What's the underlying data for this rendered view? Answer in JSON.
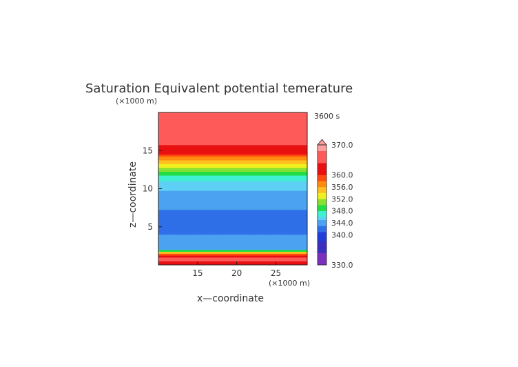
{
  "chart_data": {
    "type": "heatmap",
    "title": "Saturation Equivalent potential temerature",
    "time_label": "3600 s",
    "xlabel": "x—coordinate",
    "ylabel": "z—coordinate",
    "x_unit": "(×1000 m)",
    "y_unit": "(×1000 m)",
    "xlim": [
      10,
      29
    ],
    "ylim": [
      0,
      20
    ],
    "x_ticks": [
      15,
      20,
      25
    ],
    "y_ticks": [
      5,
      10,
      15
    ],
    "colorbar": {
      "min": 330,
      "max": 370,
      "tick_labels": [
        "370.0",
        "360.0",
        "356.0",
        "352.0",
        "348.0",
        "344.0",
        "340.0",
        "330.0"
      ],
      "tick_values": [
        370,
        360,
        356,
        352,
        348,
        344,
        340,
        330
      ],
      "colors": [
        {
          "value": 330,
          "color": "#7b2fbf"
        },
        {
          "value": 334,
          "color": "#3a2fbf"
        },
        {
          "value": 338,
          "color": "#1f3fd8"
        },
        {
          "value": 341,
          "color": "#2f6fe8"
        },
        {
          "value": 343,
          "color": "#4aa2f0"
        },
        {
          "value": 345,
          "color": "#5fd0f5"
        },
        {
          "value": 346.5,
          "color": "#3ff0d0"
        },
        {
          "value": 348,
          "color": "#22dd44"
        },
        {
          "value": 350,
          "color": "#88e030"
        },
        {
          "value": 352,
          "color": "#f0f020"
        },
        {
          "value": 354,
          "color": "#ffc020"
        },
        {
          "value": 356,
          "color": "#ff8a10"
        },
        {
          "value": 358,
          "color": "#ff4a10"
        },
        {
          "value": 360,
          "color": "#e81010"
        },
        {
          "value": 364,
          "color": "#ff5a5a"
        },
        {
          "value": 368,
          "color": "#ffa0a0"
        }
      ]
    },
    "profile": [
      {
        "z": 0.0,
        "value": 362
      },
      {
        "z": 0.4,
        "value": 364
      },
      {
        "z": 1.0,
        "value": 366
      },
      {
        "z": 1.6,
        "value": 356
      },
      {
        "z": 2.0,
        "value": 345
      },
      {
        "z": 2.6,
        "value": 343
      },
      {
        "z": 3.2,
        "value": 344
      },
      {
        "z": 4.0,
        "value": 343
      },
      {
        "z": 5.0,
        "value": 342
      },
      {
        "z": 6.5,
        "value": 342
      },
      {
        "z": 7.5,
        "value": 343.5
      },
      {
        "z": 9.0,
        "value": 344.5
      },
      {
        "z": 10.5,
        "value": 345.5
      },
      {
        "z": 11.5,
        "value": 347.5
      },
      {
        "z": 12.0,
        "value": 349
      },
      {
        "z": 12.8,
        "value": 352
      },
      {
        "z": 13.6,
        "value": 355
      },
      {
        "z": 14.2,
        "value": 358
      },
      {
        "z": 14.6,
        "value": 360
      },
      {
        "z": 15.2,
        "value": 362
      },
      {
        "z": 16.0,
        "value": 365
      },
      {
        "z": 20.0,
        "value": 366
      }
    ]
  }
}
